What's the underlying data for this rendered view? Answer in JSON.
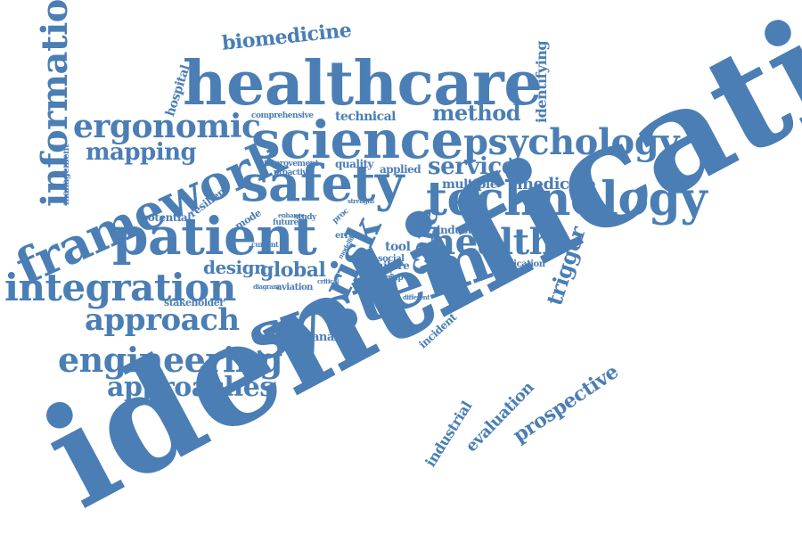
{
  "color": "#4a7eb5",
  "words": [
    {
      "text": "identification"
    },
    {
      "text": "system"
    },
    {
      "text": "healthcare"
    },
    {
      "text": "science"
    },
    {
      "text": "safety"
    },
    {
      "text": "patient"
    },
    {
      "text": "technology"
    },
    {
      "text": "framework"
    },
    {
      "text": "integration"
    },
    {
      "text": "psychology"
    },
    {
      "text": "engineering"
    },
    {
      "text": "information"
    },
    {
      "text": "ergonomic"
    },
    {
      "text": "health"
    },
    {
      "text": "approach"
    },
    {
      "text": "approaches"
    },
    {
      "text": "risk"
    },
    {
      "text": "mapping"
    },
    {
      "text": "service"
    },
    {
      "text": "method"
    },
    {
      "text": "biomedicine"
    },
    {
      "text": "care"
    },
    {
      "text": "design"
    },
    {
      "text": "global"
    },
    {
      "text": "trigger"
    },
    {
      "text": "prospective"
    },
    {
      "text": "evaluation"
    },
    {
      "text": "industrial"
    },
    {
      "text": "identifying"
    },
    {
      "text": "hospital"
    },
    {
      "text": "management"
    },
    {
      "text": "medicine"
    },
    {
      "text": "multiple"
    },
    {
      "text": "industries"
    },
    {
      "text": "technical"
    },
    {
      "text": "comprehensive"
    },
    {
      "text": "potential"
    },
    {
      "text": "resilient"
    },
    {
      "text": "mode"
    },
    {
      "text": "improvement"
    },
    {
      "text": "proactive"
    },
    {
      "text": "quality"
    },
    {
      "text": "applied"
    },
    {
      "text": "incident"
    },
    {
      "text": "analysis"
    },
    {
      "text": "policy"
    },
    {
      "text": "aviation"
    },
    {
      "text": "stakeholder"
    },
    {
      "text": "failure"
    },
    {
      "text": "application"
    },
    {
      "text": "practice"
    },
    {
      "text": "social"
    },
    {
      "text": "tool"
    },
    {
      "text": "staff"
    },
    {
      "text": "map"
    },
    {
      "text": "error"
    },
    {
      "text": "future"
    },
    {
      "text": "study"
    },
    {
      "text": "current"
    },
    {
      "text": "enhance"
    },
    {
      "text": "proc"
    },
    {
      "text": "paper"
    },
    {
      "text": "critical"
    },
    {
      "text": "diagram"
    },
    {
      "text": "different"
    },
    {
      "text": "modelling"
    },
    {
      "text": "strength"
    }
  ]
}
